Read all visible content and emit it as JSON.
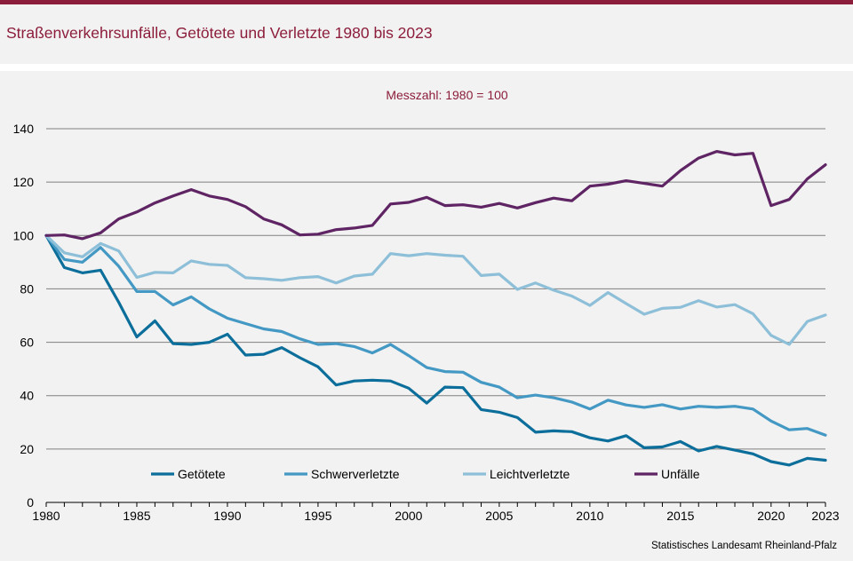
{
  "header": {
    "title": "Straßenverkehrsunfälle, Getötete und Verletzte 1980 bis 2023"
  },
  "chart": {
    "subtitle": "Messzahl:  1980 = 100",
    "source": "Statistisches Landesamt  Rheinland-Pfalz"
  },
  "chart_data": {
    "type": "line",
    "title": "Straßenverkehrsunfälle, Getötete und Verletzte 1980 bis 2023",
    "subtitle": "Messzahl:  1980 = 100",
    "xlabel": "",
    "ylabel": "",
    "xlim": [
      1980,
      2023
    ],
    "ylim": [
      0,
      140
    ],
    "x_ticks": [
      "1980",
      "1985",
      "1990",
      "1995",
      "2000",
      "2005",
      "2010",
      "2015",
      "2020",
      "2023"
    ],
    "y_ticks": [
      "0",
      "20",
      "40",
      "60",
      "80",
      "100",
      "120",
      "140"
    ],
    "grid": "horizontal",
    "legend_position": "bottom",
    "x": [
      1980,
      1981,
      1982,
      1983,
      1984,
      1985,
      1986,
      1987,
      1988,
      1989,
      1990,
      1991,
      1992,
      1993,
      1994,
      1995,
      1996,
      1997,
      1998,
      1999,
      2000,
      2001,
      2002,
      2003,
      2004,
      2005,
      2006,
      2007,
      2008,
      2009,
      2010,
      2011,
      2012,
      2013,
      2014,
      2015,
      2016,
      2017,
      2018,
      2019,
      2020,
      2021,
      2022,
      2023
    ],
    "series": [
      {
        "name": "Getötete",
        "color": "#0c6e9a",
        "values": [
          100,
          88,
          86,
          87,
          75,
          62,
          68,
          59.5,
          59.2,
          60,
          63,
          55.2,
          55.5,
          58,
          54.2,
          50.8,
          44,
          45.5,
          45.8,
          45.5,
          42.8,
          37.2,
          43.2,
          43,
          34.8,
          33.8,
          31.8,
          26.3,
          26.8,
          26.5,
          24.2,
          23,
          25,
          20.5,
          20.8,
          22.8,
          19.3,
          21,
          19.6,
          18.2,
          15.3,
          14,
          16.5,
          15.8
        ]
      },
      {
        "name": "Schwerverletzte",
        "color": "#4398c4",
        "values": [
          100,
          91,
          90,
          95.5,
          88.5,
          79,
          79,
          74,
          77,
          72.5,
          69,
          67,
          65,
          64,
          61.3,
          59.2,
          59.5,
          58.4,
          56,
          59.2,
          55,
          50.5,
          49,
          48.8,
          45,
          43.2,
          39.2,
          40.2,
          39.2,
          37.6,
          35,
          38.3,
          36.5,
          35.6,
          36.6,
          35,
          36,
          35.6,
          36,
          35,
          30.5,
          27.2,
          27.7,
          25.2
        ]
      },
      {
        "name": "Leichtverletzte",
        "color": "#8ebfd8",
        "values": [
          100,
          93.5,
          92,
          97,
          94.2,
          84.3,
          86.2,
          86,
          90.5,
          89.2,
          88.8,
          84.2,
          83.8,
          83.2,
          84.2,
          84.6,
          82.2,
          84.8,
          85.5,
          93.2,
          92.4,
          93.2,
          92.6,
          92.2,
          85,
          85.5,
          79.8,
          82.2,
          79.5,
          77.3,
          73.8,
          78.6,
          74.5,
          70.5,
          72.7,
          73.1,
          75.6,
          73.2,
          74.1,
          70.7,
          62.6,
          59.2,
          67.8,
          70.2
        ]
      },
      {
        "name": "Unfälle",
        "color": "#5f2463",
        "values": [
          100,
          100.2,
          98.8,
          101,
          106.2,
          108.8,
          112.2,
          114.8,
          117.2,
          114.8,
          113.5,
          110.8,
          106.2,
          104,
          100.2,
          100.5,
          102.2,
          102.8,
          103.8,
          111.8,
          112.4,
          114.3,
          111.2,
          111.5,
          110.6,
          112,
          110.3,
          112.3,
          114,
          113,
          118.5,
          119.2,
          120.5,
          119.5,
          118.5,
          124.3,
          129,
          131.5,
          130.2,
          130.8,
          111.2,
          113.5,
          121.2,
          126.5
        ]
      }
    ]
  }
}
